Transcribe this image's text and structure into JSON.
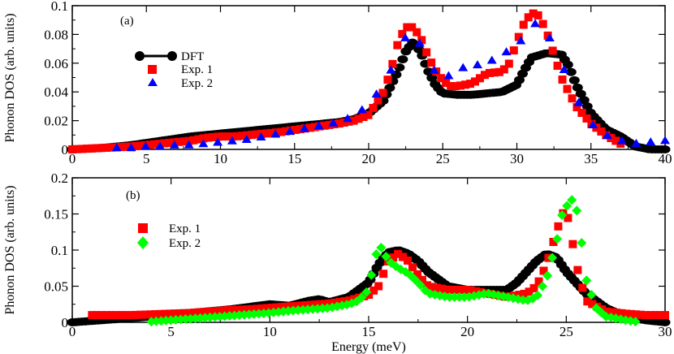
{
  "figure": {
    "xlabel": "Energy (meV)"
  },
  "chart_data": [
    {
      "type": "scatter",
      "panel": "(a)",
      "ylabel": "Phonon DOS (arb. units)",
      "xlim": [
        0,
        40
      ],
      "ylim": [
        0,
        0.1
      ],
      "xticks": [
        0,
        5,
        10,
        15,
        20,
        25,
        30,
        35,
        40
      ],
      "xtick_labels": [
        "0",
        "5",
        "10",
        "15",
        "20",
        "25",
        "30",
        "35",
        "40"
      ],
      "yticks": [
        0,
        0.02,
        0.04,
        0.06,
        0.08,
        0.1
      ],
      "ytick_labels": [
        "0",
        "0.02",
        "0.04",
        "0.06",
        "0.08",
        "0.1"
      ],
      "legend_position": "upper-left",
      "series": [
        {
          "name": "DFT",
          "color": "#000000",
          "marker": "circle-line",
          "x": [
            0,
            2,
            4,
            6,
            8,
            10,
            12,
            14,
            16,
            18,
            19,
            20,
            21,
            22,
            22.5,
            23,
            23.5,
            24,
            24.5,
            25,
            26,
            27,
            28,
            29,
            30,
            30.5,
            31,
            32,
            33,
            33.5,
            34,
            35,
            36,
            37,
            38,
            39,
            40
          ],
          "y": [
            0,
            0.001,
            0.003,
            0.006,
            0.009,
            0.011,
            0.013,
            0.015,
            0.017,
            0.019,
            0.021,
            0.025,
            0.034,
            0.055,
            0.068,
            0.075,
            0.068,
            0.055,
            0.045,
            0.039,
            0.038,
            0.038,
            0.039,
            0.04,
            0.045,
            0.055,
            0.064,
            0.067,
            0.066,
            0.058,
            0.045,
            0.025,
            0.014,
            0.009,
            0.002,
            0,
            0
          ]
        },
        {
          "name": "Exp. 1",
          "color": "#ff0000",
          "marker": "square",
          "x": [
            0,
            2,
            4,
            6,
            8,
            9,
            10,
            11,
            12,
            14,
            16,
            18,
            19,
            20,
            21,
            21.5,
            22,
            22.5,
            23,
            23.5,
            24,
            24.5,
            25,
            25.5,
            26,
            27,
            28,
            29,
            29.5,
            30,
            30.5,
            31,
            31.5,
            32,
            32.5,
            33,
            33.5,
            34,
            35,
            36,
            37
          ],
          "y": [
            0,
            0.001,
            0.002,
            0.004,
            0.006,
            0.008,
            0.009,
            0.009,
            0.01,
            0.012,
            0.015,
            0.018,
            0.02,
            0.024,
            0.04,
            0.055,
            0.075,
            0.085,
            0.085,
            0.078,
            0.065,
            0.055,
            0.048,
            0.044,
            0.044,
            0.046,
            0.053,
            0.054,
            0.06,
            0.075,
            0.088,
            0.095,
            0.093,
            0.082,
            0.066,
            0.05,
            0.04,
            0.03,
            0.018,
            0.01,
            0.004
          ]
        },
        {
          "name": "Exp. 2",
          "color": "#0000ff",
          "marker": "triangle",
          "x": [
            3,
            4,
            5,
            6,
            7,
            8,
            9,
            10,
            11,
            12,
            13,
            14,
            15,
            16,
            17,
            18,
            19,
            20,
            21,
            21.5,
            22,
            22.5,
            23,
            23.5,
            24,
            25,
            26,
            27,
            28,
            29,
            30,
            31,
            31.5,
            32,
            33,
            34,
            35,
            36,
            37,
            38,
            40
          ],
          "y": [
            0.001,
            0.001,
            0.002,
            0.002,
            0.003,
            0.003,
            0.004,
            0.005,
            0.006,
            0.007,
            0.009,
            0.011,
            0.013,
            0.015,
            0.017,
            0.019,
            0.023,
            0.031,
            0.045,
            0.055,
            0.068,
            0.078,
            0.08,
            0.073,
            0.06,
            0.048,
            0.056,
            0.058,
            0.06,
            0.066,
            0.072,
            0.085,
            0.09,
            0.082,
            0.06,
            0.035,
            0.018,
            0.01,
            0.006,
            0.004,
            0.006
          ]
        }
      ]
    },
    {
      "type": "scatter",
      "panel": "(b)",
      "ylabel": "Phonon DOS (arb. units)",
      "xlabel": "Energy (meV)",
      "xlim": [
        0,
        30
      ],
      "ylim": [
        0,
        0.2
      ],
      "xticks": [
        0,
        5,
        10,
        15,
        20,
        25,
        30
      ],
      "xtick_labels": [
        "0",
        "5",
        "10",
        "15",
        "20",
        "25",
        "30"
      ],
      "yticks": [
        0,
        0.05,
        0.1,
        0.15,
        0.2
      ],
      "ytick_labels": [
        "0",
        "0.05",
        "0.1",
        "0.15",
        "0.2"
      ],
      "legend_position": "upper-left",
      "series": [
        {
          "name": "DFT",
          "color": "#000000",
          "marker": "circle",
          "show_in_legend": false,
          "x": [
            0,
            2,
            4,
            6,
            8,
            10,
            11,
            12,
            12.5,
            13,
            14,
            15,
            15.5,
            16,
            16.5,
            17,
            17.5,
            18,
            19,
            20,
            21,
            22,
            22.5,
            23,
            23.5,
            24,
            24.5,
            25,
            25.5,
            26,
            27,
            28,
            29,
            30
          ],
          "y": [
            0,
            0.004,
            0.008,
            0.013,
            0.018,
            0.025,
            0.023,
            0.03,
            0.032,
            0.028,
            0.035,
            0.055,
            0.08,
            0.097,
            0.1,
            0.095,
            0.085,
            0.07,
            0.05,
            0.045,
            0.045,
            0.045,
            0.055,
            0.07,
            0.085,
            0.095,
            0.09,
            0.07,
            0.055,
            0.04,
            0.02,
            0.008,
            0.003,
            0
          ]
        },
        {
          "name": "Exp. 1",
          "color": "#ff0000",
          "marker": "square",
          "x": [
            1,
            2,
            3,
            4,
            5,
            6,
            7,
            8,
            9,
            10,
            11,
            12,
            13,
            14,
            15,
            15.5,
            16,
            16.5,
            17,
            17.5,
            18,
            19,
            20,
            21,
            22,
            23,
            23.5,
            24,
            24.5,
            24.8,
            25,
            25.2,
            25.5,
            26,
            27,
            28,
            29,
            30
          ],
          "y": [
            0.01,
            0.01,
            0.01,
            0.011,
            0.012,
            0.013,
            0.015,
            0.017,
            0.018,
            0.02,
            0.022,
            0.024,
            0.026,
            0.03,
            0.038,
            0.05,
            0.085,
            0.095,
            0.085,
            0.065,
            0.05,
            0.045,
            0.045,
            0.04,
            0.035,
            0.04,
            0.05,
            0.08,
            0.125,
            0.15,
            0.155,
            0.13,
            0.08,
            0.03,
            0.015,
            0.012,
            0.01,
            0.01
          ]
        },
        {
          "name": "Exp. 2",
          "color": "#00ff00",
          "marker": "diamond",
          "x": [
            4,
            5,
            6,
            7,
            8,
            9,
            10,
            11,
            12,
            13,
            14,
            14.5,
            15,
            15.3,
            15.6,
            16,
            16.5,
            17,
            17.5,
            18,
            19,
            20,
            21,
            22,
            23,
            23.5,
            24,
            24.5,
            24.8,
            25,
            25.3,
            25.6,
            26,
            26.5,
            27,
            28,
            28.5
          ],
          "y": [
            0.001,
            0.003,
            0.005,
            0.007,
            0.009,
            0.011,
            0.013,
            0.016,
            0.018,
            0.02,
            0.025,
            0.03,
            0.045,
            0.09,
            0.105,
            0.085,
            0.075,
            0.068,
            0.055,
            0.04,
            0.035,
            0.035,
            0.04,
            0.035,
            0.03,
            0.035,
            0.06,
            0.11,
            0.15,
            0.16,
            0.17,
            0.15,
            0.06,
            0.02,
            0.008,
            0.003,
            0.001
          ]
        }
      ]
    }
  ]
}
